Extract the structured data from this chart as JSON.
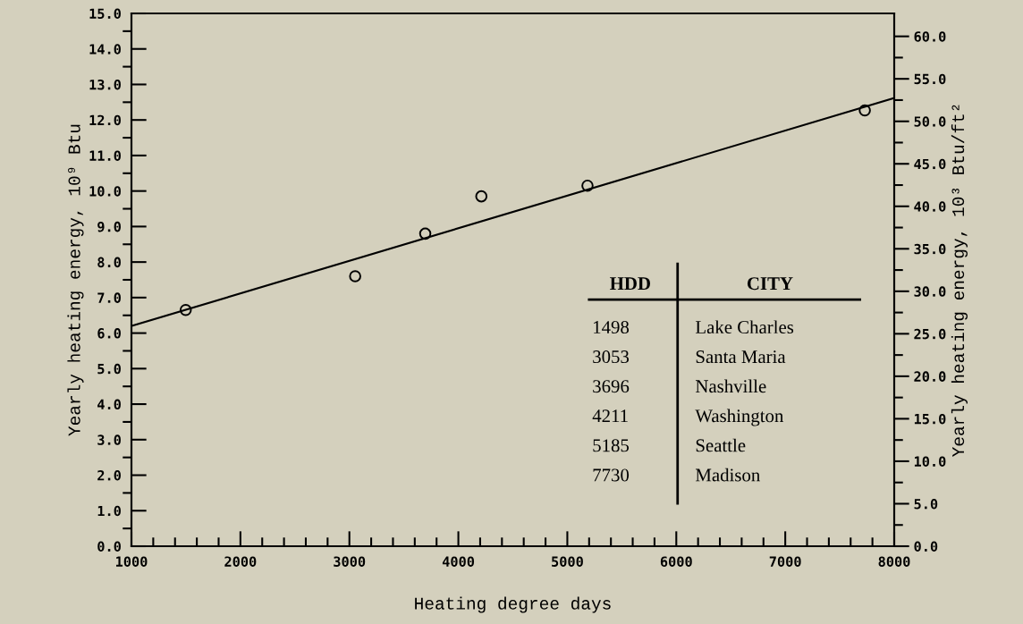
{
  "chart_data": {
    "type": "scatter",
    "xlabel": "Heating degree days",
    "ylabel": "Yearly heating energy, 10⁹ Btu",
    "y2label": "Yearly heating energy, 10³ Btu/ft²",
    "x": [
      1498,
      3053,
      3696,
      4211,
      5185,
      7730
    ],
    "series": [
      {
        "type": "scatter",
        "color": "#000000",
        "marker": "circle",
        "values": [
          6.65,
          7.6,
          8.8,
          9.85,
          10.15,
          12.27
        ]
      },
      {
        "type": "line",
        "color": "#000000",
        "marker": "none",
        "x": [
          1000,
          8000
        ],
        "values": [
          6.2,
          12.62
        ]
      }
    ],
    "xlim": [
      1000,
      8000
    ],
    "xticks": [
      1000,
      {
        "value": 1200,
        "label": null
      },
      {
        "value": 1400,
        "label": null
      },
      {
        "value": 1600,
        "label": null
      },
      {
        "value": 1800,
        "label": null
      },
      2000,
      {
        "value": 2200,
        "label": null
      },
      {
        "value": 2400,
        "label": null
      },
      {
        "value": 2600,
        "label": null
      },
      {
        "value": 2800,
        "label": null
      },
      3000,
      {
        "value": 3200,
        "label": null
      },
      {
        "value": 3400,
        "label": null
      },
      {
        "value": 3600,
        "label": null
      },
      {
        "value": 3800,
        "label": null
      },
      4000,
      {
        "value": 4200,
        "label": null
      },
      {
        "value": 4400,
        "label": null
      },
      {
        "value": 4600,
        "label": null
      },
      {
        "value": 4800,
        "label": null
      },
      5000,
      {
        "value": 5200,
        "label": null
      },
      {
        "value": 5400,
        "label": null
      },
      {
        "value": 5600,
        "label": null
      },
      {
        "value": 5800,
        "label": null
      },
      6000,
      {
        "value": 6200,
        "label": null
      },
      {
        "value": 6400,
        "label": null
      },
      {
        "value": 6600,
        "label": null
      },
      {
        "value": 6800,
        "label": null
      },
      7000,
      {
        "value": 7200,
        "label": null
      },
      {
        "value": 7400,
        "label": null
      },
      {
        "value": 7600,
        "label": null
      },
      {
        "value": 7800,
        "label": null
      },
      8000
    ],
    "ylim": [
      0,
      15
    ],
    "yticks": [
      {
        "value": 0,
        "label": "0.0"
      },
      {
        "value": 0.5,
        "label": null
      },
      {
        "value": 1,
        "label": "1.0"
      },
      {
        "value": 1.5,
        "label": null
      },
      {
        "value": 2,
        "label": "2.0"
      },
      {
        "value": 2.5,
        "label": null
      },
      {
        "value": 3,
        "label": "3.0"
      },
      {
        "value": 3.5,
        "label": null
      },
      {
        "value": 4,
        "label": "4.0"
      },
      {
        "value": 4.5,
        "label": null
      },
      {
        "value": 5,
        "label": "5.0"
      },
      {
        "value": 5.5,
        "label": null
      },
      {
        "value": 6,
        "label": "6.0"
      },
      {
        "value": 6.5,
        "label": null
      },
      {
        "value": 7,
        "label": "7.0"
      },
      {
        "value": 7.5,
        "label": null
      },
      {
        "value": 8,
        "label": "8.0"
      },
      {
        "value": 8.5,
        "label": null
      },
      {
        "value": 9,
        "label": "9.0"
      },
      {
        "value": 9.5,
        "label": null
      },
      {
        "value": 10,
        "label": "10.0"
      },
      {
        "value": 10.5,
        "label": null
      },
      {
        "value": 11,
        "label": "11.0"
      },
      {
        "value": 11.5,
        "label": null
      },
      {
        "value": 12,
        "label": "12.0"
      },
      {
        "value": 12.5,
        "label": null
      },
      {
        "value": 13,
        "label": "13.0"
      },
      {
        "value": 13.5,
        "label": null
      },
      {
        "value": 14,
        "label": "14.0"
      },
      {
        "value": 14.5,
        "label": null
      },
      {
        "value": 15,
        "label": "15.0"
      }
    ],
    "y2lim": [
      0,
      62.7
    ],
    "y2ticks": [
      {
        "value": 0,
        "label": "0.0"
      },
      {
        "value": 2.5,
        "label": null
      },
      {
        "value": 5,
        "label": "5.0"
      },
      {
        "value": 7.5,
        "label": null
      },
      {
        "value": 10,
        "label": "10.0"
      },
      {
        "value": 12.5,
        "label": null
      },
      {
        "value": 15,
        "label": "15.0"
      },
      {
        "value": 17.5,
        "label": null
      },
      {
        "value": 20,
        "label": "20.0"
      },
      {
        "value": 22.5,
        "label": null
      },
      {
        "value": 25,
        "label": "25.0"
      },
      {
        "value": 27.5,
        "label": null
      },
      {
        "value": 30,
        "label": "30.0"
      },
      {
        "value": 32.5,
        "label": null
      },
      {
        "value": 35,
        "label": "35.0"
      },
      {
        "value": 37.5,
        "label": null
      },
      {
        "value": 40,
        "label": "40.0"
      },
      {
        "value": 42.5,
        "label": null
      },
      {
        "value": 45,
        "label": "45.0"
      },
      {
        "value": 47.5,
        "label": null
      },
      {
        "value": 50,
        "label": "50.0"
      },
      {
        "value": 52.5,
        "label": null
      },
      {
        "value": 55,
        "label": "55.0"
      },
      {
        "value": 57.5,
        "label": null
      },
      {
        "value": 60,
        "label": "60.0"
      }
    ],
    "grid": false,
    "legend": false,
    "annotations": [
      "HDD",
      "CITY",
      "1498",
      "Lake Charles",
      "3053",
      "Santa Maria",
      "3696",
      "Nashville",
      "4211",
      "Washington",
      "5185",
      "Seattle",
      "7730",
      "Madison"
    ]
  }
}
